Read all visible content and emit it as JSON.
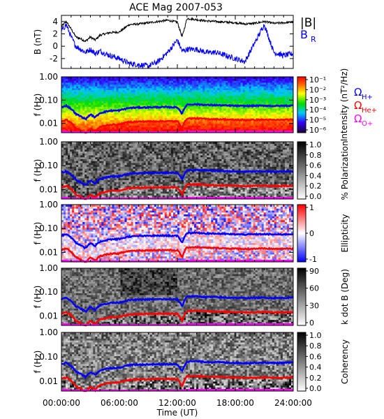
{
  "title": "ACE Mag 2007-053",
  "colors": {
    "total_b": "#000000",
    "b_radial": "#0000ff",
    "h_plus": "#0000ff",
    "he_plus": "#ff0000",
    "o_plus": "#ff00ff"
  },
  "x_axis": {
    "label": "Time (UT)",
    "range_hours": [
      0,
      24
    ],
    "tick_labels": [
      "00:00:00",
      "06:00:00",
      "12:00:00",
      "18:00:00",
      "24:00:00"
    ]
  },
  "chart_data": [
    {
      "type": "line",
      "panel": "field-magnitude",
      "ylabel": "B (nT)",
      "ylim": [
        -3.6,
        5
      ],
      "ytick_labels": [
        "4",
        "2",
        "0",
        "-2"
      ],
      "legend": {
        "placement": "right",
        "entries": [
          "|B|",
          "B",
          "R"
        ]
      },
      "series": [
        {
          "name": "|B|",
          "color": "#000000",
          "x": [
            0,
            0.5,
            1,
            1.5,
            2,
            2.5,
            3,
            3.5,
            4,
            5,
            6,
            7,
            8,
            9,
            10,
            11,
            12,
            12.5,
            13,
            14,
            15,
            16,
            17,
            18,
            19,
            20,
            21,
            22,
            23,
            24
          ],
          "y": [
            3.2,
            4.0,
            2.8,
            1.5,
            1.2,
            0.8,
            1.5,
            1.0,
            1.8,
            2.2,
            2.3,
            3.5,
            3.6,
            3.8,
            4.0,
            4.2,
            3.9,
            1.5,
            4.5,
            4.3,
            4.1,
            4.0,
            3.9,
            3.8,
            3.6,
            3.7,
            4.0,
            3.7,
            3.8,
            3.9
          ]
        },
        {
          "name": "BR",
          "color": "#0000ff",
          "x": [
            0,
            0.5,
            1,
            1.5,
            2,
            2.5,
            3,
            3.5,
            4,
            5,
            6,
            7,
            8,
            9,
            10,
            11,
            12,
            12.5,
            13,
            14,
            15,
            16,
            17,
            18,
            19,
            20,
            21,
            22,
            23,
            24
          ],
          "y": [
            2.5,
            3.5,
            1.5,
            0.0,
            -0.5,
            -1.0,
            -0.5,
            -1.2,
            -0.8,
            -1.5,
            -2.0,
            -2.8,
            -3.0,
            -3.2,
            -2.5,
            -1.0,
            1.0,
            -0.8,
            -0.5,
            -0.5,
            -1.0,
            -1.0,
            -1.5,
            -2.0,
            -2.5,
            0.5,
            3.5,
            -1.0,
            -1.5,
            -1.2
          ]
        }
      ]
    },
    {
      "type": "heatmap",
      "panel": "power-spectrum",
      "ylabel": "f (Hz)",
      "ylim": [
        0.004,
        1.0
      ],
      "yscale": "log",
      "ytick_labels": [
        "1.00",
        "0.10",
        "0.01"
      ],
      "colorbar": {
        "label": "Intensity (nT²/Hz)",
        "scale": "log",
        "range": [
          1e-06,
          0.1
        ],
        "tick_labels": [
          "10⁻¹",
          "10⁻²",
          "10⁻³",
          "10⁻⁴",
          "10⁻⁵",
          "10⁻⁶"
        ]
      },
      "legend": {
        "placement": "right",
        "entries": [
          "Ω",
          "H+",
          "Ω",
          "He+",
          "Ω",
          "O+"
        ]
      }
    },
    {
      "type": "heatmap",
      "panel": "polarization",
      "ylabel": "f (Hz)",
      "ylim": [
        0.004,
        1.0
      ],
      "yscale": "log",
      "ytick_labels": [
        "1.00",
        "0.10",
        "0.01"
      ],
      "colorbar": {
        "label": "% Polarization",
        "range": [
          0,
          1
        ],
        "tick_labels": [
          "1.0",
          "0.8",
          "0.6",
          "0.4",
          "0.2",
          "0.0"
        ]
      }
    },
    {
      "type": "heatmap",
      "panel": "ellipticity",
      "ylabel": "f (Hz)",
      "ylim": [
        0.004,
        1.0
      ],
      "yscale": "log",
      "ytick_labels": [
        "1.00",
        "0.10",
        "0.01"
      ],
      "colorbar": {
        "label": "Ellipticity",
        "range": [
          -1,
          1
        ],
        "tick_labels": [
          "1",
          "0",
          "-1"
        ]
      }
    },
    {
      "type": "heatmap",
      "panel": "k-dot-b",
      "ylabel": "f (Hz)",
      "ylim": [
        0.004,
        1.0
      ],
      "yscale": "log",
      "ytick_labels": [
        "1.00",
        "0.10",
        "0.01"
      ],
      "colorbar": {
        "label": "k dot B (Deg)",
        "range": [
          0,
          90
        ],
        "tick_labels": [
          "90",
          "60",
          "30",
          "0"
        ]
      }
    },
    {
      "type": "heatmap",
      "panel": "coherency",
      "ylabel": "f (Hz)",
      "ylim": [
        0.004,
        1.0
      ],
      "yscale": "log",
      "ytick_labels": [
        "1.00",
        "0.10",
        "0.01"
      ],
      "colorbar": {
        "label": "Coherency",
        "range": [
          0,
          1
        ],
        "tick_labels": [
          "1.0",
          "0.8",
          "0.6",
          "0.4",
          "0.2",
          "0.0"
        ]
      }
    }
  ],
  "gyrofrequency_lines": {
    "x": [
      0,
      0.5,
      1,
      1.5,
      2,
      2.5,
      3,
      3.5,
      4,
      5,
      6,
      7,
      8,
      9,
      10,
      11,
      12,
      12.5,
      13,
      14,
      15,
      16,
      17,
      18,
      19,
      20,
      21,
      22,
      23,
      24
    ],
    "h_plus": [
      0.05,
      0.058,
      0.042,
      0.025,
      0.02,
      0.015,
      0.024,
      0.018,
      0.028,
      0.035,
      0.036,
      0.046,
      0.048,
      0.049,
      0.05,
      0.05,
      0.049,
      0.025,
      0.065,
      0.066,
      0.062,
      0.061,
      0.059,
      0.057,
      0.056,
      0.057,
      0.058,
      0.056,
      0.057,
      0.058
    ],
    "he_plus": [
      0.0125,
      0.0145,
      0.0105,
      0.0062,
      0.005,
      0.0038,
      0.006,
      0.0045,
      0.007,
      0.0088,
      0.009,
      0.0115,
      0.012,
      0.0122,
      0.0125,
      0.0125,
      0.0122,
      0.0062,
      0.0162,
      0.0165,
      0.0155,
      0.0152,
      0.0148,
      0.0142,
      0.014,
      0.0142,
      0.0145,
      0.014,
      0.0142,
      0.0145
    ],
    "o_plus": [
      0.0045,
      0.0045,
      0.0042,
      0.0042,
      0.0042,
      0.0042,
      0.0042,
      0.0042,
      0.0042,
      0.0042,
      0.0042,
      0.0042,
      0.0042,
      0.0042,
      0.0042,
      0.0042,
      0.0042,
      0.0042,
      0.0045,
      0.0045,
      0.0045,
      0.0045,
      0.0045,
      0.0045,
      0.0045,
      0.0045,
      0.0045,
      0.0045,
      0.0045,
      0.0045
    ]
  }
}
